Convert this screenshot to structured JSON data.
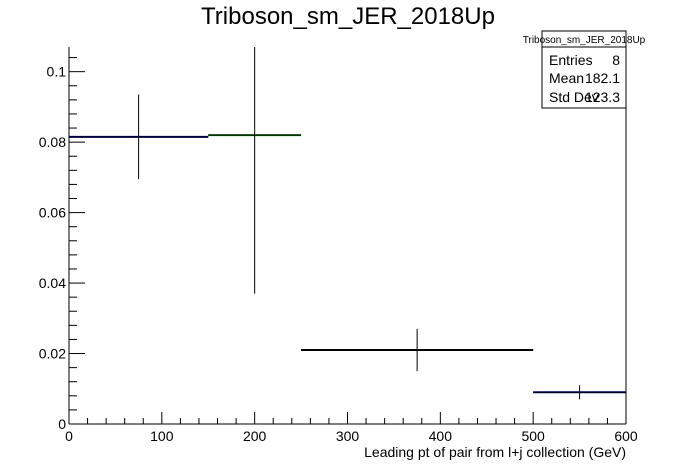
{
  "chart_data": {
    "type": "histogram",
    "title": "Triboson_sm_JER_2018Up",
    "xlabel": "Leading pt of pair from l+j collection (GeV)",
    "ylabel": "",
    "xlim": [
      0,
      600
    ],
    "ylim": [
      0,
      0.107
    ],
    "x_ticks": [
      0,
      100,
      200,
      300,
      400,
      500,
      600
    ],
    "y_ticks": [
      0,
      0.02,
      0.04,
      0.06,
      0.08,
      0.1
    ],
    "x_tick_labels": [
      "0",
      "100",
      "200",
      "300",
      "400",
      "500",
      "600"
    ],
    "y_tick_labels": [
      "0",
      "0.02",
      "0.04",
      "0.06",
      "0.08",
      "0.1"
    ],
    "grid": false,
    "bins": [
      {
        "x_low": 0,
        "x_high": 150,
        "value": 0.0815,
        "error": 0.012,
        "color": "#000080",
        "error_color": "#000000"
      },
      {
        "x_low": 150,
        "x_high": 250,
        "value": 0.082,
        "error": 0.045,
        "color": "#008000",
        "error_color": "#000000"
      },
      {
        "x_low": 250,
        "x_high": 500,
        "value": 0.021,
        "error": 0.006,
        "color": "#000000",
        "error_color": "#000000"
      },
      {
        "x_low": 500,
        "x_high": 600,
        "value": 0.009,
        "error": 0.002,
        "color": "#000080",
        "error_color": "#000000"
      }
    ],
    "stats_box": {
      "title": "Triboson_sm_JER_2018Up",
      "placement": "top-right",
      "rows": [
        {
          "label": "Entries",
          "value": "8"
        },
        {
          "label": "Mean",
          "value": "182.1"
        },
        {
          "label": "Std Dev",
          "value": "123.3"
        }
      ]
    }
  }
}
